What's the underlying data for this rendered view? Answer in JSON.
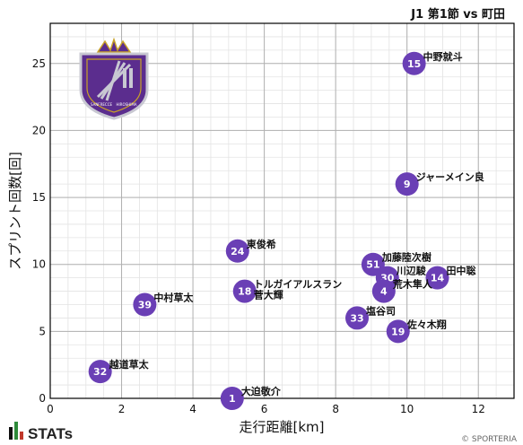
{
  "header": {
    "title": "J1 第1節 vs 町田"
  },
  "footer": {
    "brand": "STATs",
    "copyright": "© SPORTERIA"
  },
  "logo": {
    "crest_lines": [
      "SANFRECCE",
      "HIROSHIMA"
    ],
    "colors": {
      "purple": "#5b2d8e",
      "gold": "#c9a227",
      "silver": "#c8c8d2"
    }
  },
  "chart_data": {
    "type": "scatter",
    "xlabel": "走行距離[km]",
    "ylabel": "スプリント回数[回]",
    "xlim": [
      0,
      13
    ],
    "ylim": [
      0,
      28
    ],
    "xticks": [
      0,
      2,
      4,
      6,
      8,
      10,
      12
    ],
    "yticks": [
      0,
      5,
      10,
      15,
      20,
      25
    ],
    "grid": true,
    "marker_color": "#6a3fb5",
    "points": [
      {
        "number": "15",
        "name": "中野就斗",
        "x": 10.2,
        "y": 25
      },
      {
        "number": "9",
        "name": "ジャーメイン良",
        "x": 10.0,
        "y": 16
      },
      {
        "number": "24",
        "name": "東俊希",
        "x": 5.25,
        "y": 11
      },
      {
        "number": "51",
        "name": "加藤陸次樹",
        "x": 9.05,
        "y": 10
      },
      {
        "number": "30",
        "name": "川辺駿",
        "x": 9.45,
        "y": 9
      },
      {
        "number": "14",
        "name": "田中聡",
        "x": 10.85,
        "y": 9
      },
      {
        "number": "18",
        "name": "トルガイアルスラン",
        "x": 5.45,
        "y": 8
      },
      {
        "number": "4",
        "name": "荒木隼人",
        "x": 9.35,
        "y": 8
      },
      {
        "number": "39",
        "name": "中村草太",
        "x": 2.65,
        "y": 7
      },
      {
        "number": "33",
        "name": "塩谷司",
        "x": 8.6,
        "y": 6
      },
      {
        "number": "19",
        "name": "佐々木翔",
        "x": 9.75,
        "y": 5
      },
      {
        "number": "32",
        "name": "越道草太",
        "x": 1.4,
        "y": 2
      },
      {
        "number": "1",
        "name": "大迫敬介",
        "x": 5.1,
        "y": 0
      },
      {
        "number": "",
        "name": "菅大輝",
        "x": 5.45,
        "y": 8
      }
    ]
  }
}
